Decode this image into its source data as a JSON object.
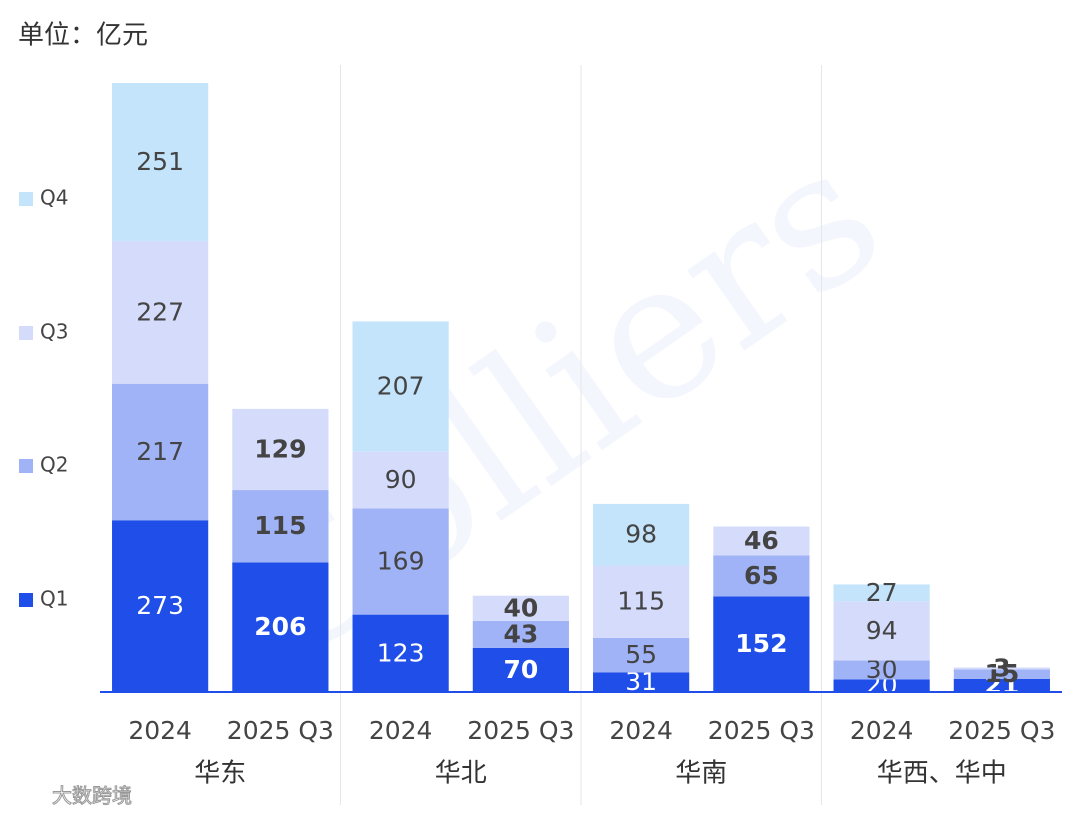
{
  "chart_data": {
    "type": "stacked_bar",
    "title": "单位：亿元",
    "watermark": "Colliers",
    "source_mark": "大数跨境",
    "groups": [
      "华东",
      "华北",
      "华南",
      "华西、华中"
    ],
    "categories": [
      "2024",
      "2025 Q3",
      "2024",
      "2025 Q3",
      "2024",
      "2025 Q3",
      "2024",
      "2025 Q3"
    ],
    "series": [
      {
        "name": "Q1",
        "color": "#1f4fe8",
        "values": [
          273,
          206,
          123,
          70,
          31,
          152,
          20,
          21
        ]
      },
      {
        "name": "Q2",
        "color": "#a0b3f6",
        "values": [
          217,
          115,
          169,
          43,
          55,
          65,
          30,
          15
        ]
      },
      {
        "name": "Q3",
        "color": "#d5dcfb",
        "values": [
          227,
          129,
          90,
          40,
          115,
          46,
          94,
          3
        ]
      },
      {
        "name": "Q4",
        "color": "#c3e4fb",
        "values": [
          251,
          null,
          207,
          null,
          98,
          null,
          27,
          null
        ]
      }
    ],
    "legend": "left"
  }
}
